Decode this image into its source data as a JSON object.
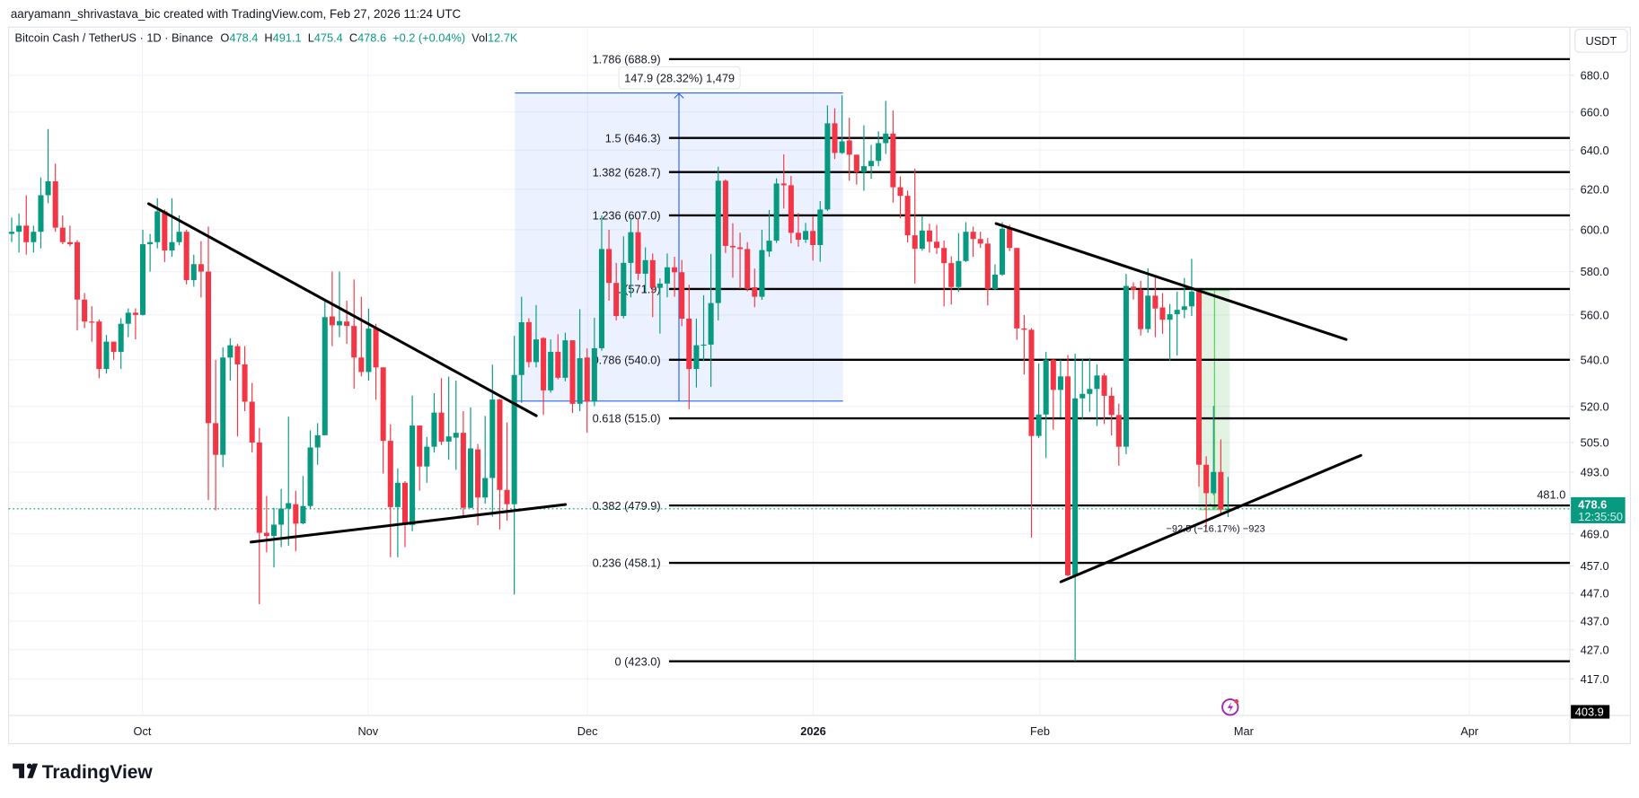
{
  "header": {
    "credit": "aaryamann_shrivastava_bic created with TradingView.com, Feb 27, 2026 11:24 UTC",
    "symbol": "Bitcoin Cash / TetherUS · 1D · Binance",
    "o_label": "O",
    "o_value": "478.4",
    "h_label": "H",
    "h_value": "491.1",
    "l_label": "L",
    "l_value": "475.4",
    "c_label": "C",
    "c_value": "478.6",
    "change": "+0.2 (+0.04%)",
    "vol_label": "Vol",
    "vol_value": "12.7K"
  },
  "price_axis": {
    "currency_button": "USDT",
    "last_price": "478.6",
    "countdown": "12:35:50",
    "low_tag": "403.9"
  },
  "footer": {
    "logo_text": "TradingView"
  },
  "annotations": {
    "range_up_label": "147.9 (28.32%) 1,479",
    "range_down_label": "−92.5 (−16.17%) −923",
    "alert_icon": "lightning-bolt-icon"
  },
  "colors": {
    "up": "#089981",
    "down": "#f23645",
    "fib_line": "#000000",
    "range_up": "#2962ff",
    "range_down": "#4caf50",
    "alert": "#9c27b0"
  },
  "chart_data": {
    "type": "candlestick",
    "title": "Bitcoin Cash / TetherUS · 1D · Binance",
    "x_ticks": [
      "Oct",
      "Nov",
      "Dec",
      "2026",
      "Feb",
      "Mar",
      "Apr"
    ],
    "y_scale": "log",
    "y_ticks": [
      680,
      660,
      640,
      620,
      600,
      580,
      560,
      540,
      520,
      505,
      493,
      481,
      469,
      457,
      447,
      437,
      427,
      417
    ],
    "y_tick_labels": [
      "680.0",
      "660.0",
      "640.0",
      "620.0",
      "600.0",
      "580.0",
      "560.0",
      "540.0",
      "520.0",
      "505.0",
      "493.0",
      "481.0",
      "469.0",
      "457.0",
      "447.0",
      "437.0",
      "427.0",
      "417.0"
    ],
    "grid": true,
    "fib_levels": [
      {
        "label": "1.786 (688.9)",
        "price": 688.9
      },
      {
        "label": "1.5 (646.3)",
        "price": 646.3
      },
      {
        "label": "1.382 (628.7)",
        "price": 628.7
      },
      {
        "label": "1.236 (607.0)",
        "price": 607.0
      },
      {
        "label": "1 (571.9)",
        "price": 571.9
      },
      {
        "label": "0.786 (540.0)",
        "price": 540.0
      },
      {
        "label": "0.618 (515.0)",
        "price": 515.0
      },
      {
        "label": "0.382 (479.9)",
        "price": 479.9
      },
      {
        "label": "0.236 (458.1)",
        "price": 458.1
      },
      {
        "label": "0 (423.0)",
        "price": 423.0
      }
    ],
    "columns": [
      "date",
      "open",
      "high",
      "low",
      "close"
    ],
    "candles": [
      [
        "2025-09-13",
        598,
        606,
        594,
        599
      ],
      [
        "2025-09-14",
        599,
        608,
        589,
        602
      ],
      [
        "2025-09-15",
        602,
        617,
        588,
        594
      ],
      [
        "2025-09-16",
        594,
        602,
        589,
        599
      ],
      [
        "2025-09-17",
        599,
        626,
        591,
        617
      ],
      [
        "2025-09-18",
        617,
        651,
        613,
        624
      ],
      [
        "2025-09-19",
        624,
        633,
        599,
        601
      ],
      [
        "2025-09-20",
        601,
        607,
        593,
        594
      ],
      [
        "2025-09-21",
        594,
        602,
        592,
        593
      ],
      [
        "2025-09-22",
        594,
        595,
        553,
        567
      ],
      [
        "2025-09-23",
        567,
        570,
        554,
        557
      ],
      [
        "2025-09-24",
        557,
        564,
        548,
        556.5
      ],
      [
        "2025-09-25",
        557,
        558,
        532,
        536
      ],
      [
        "2025-09-26",
        536,
        551,
        534,
        548
      ],
      [
        "2025-09-27",
        548,
        548,
        540,
        543.5
      ],
      [
        "2025-09-28",
        543.5,
        558.5,
        536,
        556
      ],
      [
        "2025-09-29",
        556,
        563,
        550,
        561
      ],
      [
        "2025-09-30",
        561,
        563,
        549,
        560
      ],
      [
        "2025-10-01",
        560,
        600,
        559.7,
        593
      ],
      [
        "2025-10-02",
        593,
        598,
        580,
        594
      ],
      [
        "2025-10-03",
        594,
        615.5,
        591,
        609
      ],
      [
        "2025-10-04",
        609,
        610,
        584.5,
        590
      ],
      [
        "2025-10-05",
        590,
        615.5,
        587,
        594
      ],
      [
        "2025-10-06",
        594,
        607,
        592.5,
        599
      ],
      [
        "2025-10-07",
        599,
        600,
        574,
        576
      ],
      [
        "2025-10-08",
        576,
        588,
        573,
        583.5
      ],
      [
        "2025-10-09",
        583.5,
        594.5,
        568,
        580
      ],
      [
        "2025-10-10",
        580,
        601.5,
        482,
        513
      ],
      [
        "2025-10-11",
        513,
        540,
        478,
        500
      ],
      [
        "2025-10-12",
        500,
        545.5,
        495,
        541
      ],
      [
        "2025-10-13",
        541,
        549.5,
        531,
        546.4
      ],
      [
        "2025-10-14",
        546,
        547,
        507.5,
        538
      ],
      [
        "2025-10-15",
        538,
        546,
        518,
        522
      ],
      [
        "2025-10-16",
        522,
        530,
        501,
        505
      ],
      [
        "2025-10-17",
        505,
        511,
        443,
        469.4
      ],
      [
        "2025-10-18",
        469.4,
        483.6,
        462,
        468.2
      ],
      [
        "2025-10-19",
        468.2,
        479,
        456.4,
        472.5
      ],
      [
        "2025-10-20",
        472.5,
        486.4,
        464,
        478.7
      ],
      [
        "2025-10-21",
        478.7,
        515.7,
        464.5,
        480.8
      ],
      [
        "2025-10-22",
        480.4,
        485.6,
        462.4,
        472.9
      ],
      [
        "2025-10-23",
        473,
        491.5,
        472.6,
        479.7
      ],
      [
        "2025-10-24",
        479.7,
        510,
        478.4,
        503
      ],
      [
        "2025-10-25",
        503,
        513,
        496,
        508
      ],
      [
        "2025-10-26",
        508,
        566,
        508,
        559
      ],
      [
        "2025-10-27",
        559.3,
        580,
        546,
        555.3
      ],
      [
        "2025-10-28",
        555.3,
        580,
        550,
        557.2
      ],
      [
        "2025-10-29",
        557,
        566.5,
        547,
        555
      ],
      [
        "2025-10-30",
        555,
        576.3,
        527.5,
        541
      ],
      [
        "2025-10-31",
        541,
        568.3,
        532.8,
        534.7
      ],
      [
        "2025-11-01",
        534.7,
        562.9,
        531,
        553.8
      ],
      [
        "2025-11-02",
        553.8,
        556,
        522.8,
        536.7
      ],
      [
        "2025-11-03",
        536.7,
        536.7,
        492.5,
        505.7
      ],
      [
        "2025-11-04",
        505.7,
        512.5,
        460.2,
        479.3
      ],
      [
        "2025-11-05",
        479.3,
        494.5,
        460.2,
        488.8
      ],
      [
        "2025-11-06",
        488.8,
        489.5,
        464,
        472.4
      ],
      [
        "2025-11-07",
        472.4,
        524.6,
        470,
        512
      ],
      [
        "2025-11-08",
        512,
        512,
        485.7,
        495.3
      ],
      [
        "2025-11-09",
        495.3,
        507.3,
        488.8,
        503.3
      ],
      [
        "2025-11-10",
        503.3,
        525.6,
        500.9,
        517.4
      ],
      [
        "2025-11-11",
        517.4,
        532,
        504,
        505.4
      ],
      [
        "2025-11-12",
        505.4,
        532.7,
        498,
        507.5
      ],
      [
        "2025-11-13",
        507,
        531,
        494,
        509
      ],
      [
        "2025-11-14",
        509,
        518,
        475.3,
        479
      ],
      [
        "2025-11-15",
        479,
        519.6,
        478.9,
        502.6
      ],
      [
        "2025-11-16",
        502.2,
        504.4,
        472.3,
        483
      ],
      [
        "2025-11-17",
        483,
        516,
        480.6,
        490.7
      ],
      [
        "2025-11-18",
        490.7,
        537.9,
        475.6,
        522.9
      ],
      [
        "2025-11-19",
        522.9,
        523.2,
        470.7,
        486
      ],
      [
        "2025-11-20",
        486,
        513.3,
        474,
        480.4
      ],
      [
        "2025-11-21",
        480.4,
        550.6,
        446.5,
        533.4
      ],
      [
        "2025-11-22",
        533.4,
        568.3,
        521.5,
        556.7
      ],
      [
        "2025-11-23",
        556.7,
        558.5,
        536.7,
        539
      ],
      [
        "2025-11-24",
        539,
        564.5,
        536.7,
        549
      ],
      [
        "2025-11-25",
        549.6,
        550,
        516.4,
        526.8
      ],
      [
        "2025-11-26",
        526.8,
        549,
        525.8,
        543.5
      ],
      [
        "2025-11-27",
        543.5,
        551.3,
        531.5,
        532.2
      ],
      [
        "2025-11-28",
        532.2,
        552,
        530.7,
        548.6
      ],
      [
        "2025-11-29",
        548.6,
        548.6,
        517.2,
        521.1
      ],
      [
        "2025-11-30",
        521.1,
        562.6,
        518,
        540.7
      ],
      [
        "2025-12-01",
        541,
        545,
        509,
        522
      ],
      [
        "2025-12-02",
        522,
        558.7,
        520.1,
        545.1
      ],
      [
        "2025-12-03",
        545.1,
        607,
        544,
        590.7
      ],
      [
        "2025-12-04",
        590.7,
        600,
        566.5,
        574.7
      ],
      [
        "2025-12-05",
        574.7,
        584.1,
        557.5,
        559.5
      ],
      [
        "2025-12-06",
        559.5,
        596.8,
        558.4,
        584.1
      ],
      [
        "2025-12-07",
        584.1,
        605.8,
        568,
        598.8
      ],
      [
        "2025-12-08",
        598.8,
        605.3,
        576,
        579
      ],
      [
        "2025-12-09",
        579,
        591.5,
        570.4,
        585.4
      ],
      [
        "2025-12-10",
        585.4,
        588.6,
        559,
        572.4
      ],
      [
        "2025-12-11",
        572.4,
        576.8,
        551.6,
        574.4
      ],
      [
        "2025-12-12",
        574.4,
        588.6,
        568,
        582
      ],
      [
        "2025-12-13",
        582,
        587,
        568.3,
        579.7
      ],
      [
        "2025-12-14",
        579.7,
        585.5,
        554.9,
        558.3
      ],
      [
        "2025-12-15",
        558.3,
        573.9,
        518.8,
        536
      ],
      [
        "2025-12-16",
        536,
        558.3,
        528,
        546.4
      ],
      [
        "2025-12-17",
        546.4,
        569,
        539.4,
        546.7
      ],
      [
        "2025-12-18",
        546.7,
        588.3,
        528.3,
        565.4
      ],
      [
        "2025-12-19",
        565.4,
        631.4,
        557.5,
        624.3
      ],
      [
        "2025-12-20",
        624.3,
        625,
        588.8,
        592.2
      ],
      [
        "2025-12-21",
        592.2,
        603.1,
        577.1,
        591.5
      ],
      [
        "2025-12-22",
        591.5,
        598.6,
        571.9,
        590.7
      ],
      [
        "2025-12-23",
        590.7,
        594,
        570.8,
        571.9
      ],
      [
        "2025-12-24",
        572.7,
        581.4,
        563.5,
        568.3
      ],
      [
        "2025-12-25",
        568.3,
        600,
        566.9,
        590.2
      ],
      [
        "2025-12-26",
        589.5,
        609.7,
        587,
        594.7
      ],
      [
        "2025-12-27",
        594.7,
        625.5,
        593.6,
        622.9
      ],
      [
        "2025-12-28",
        622.9,
        637.8,
        610.4,
        622
      ],
      [
        "2025-12-29",
        622,
        626.7,
        593.4,
        598.5
      ],
      [
        "2025-12-30",
        598.5,
        608.2,
        591.8,
        595.2
      ],
      [
        "2025-12-31",
        595.2,
        603.3,
        593.6,
        599.4
      ],
      [
        "2026-01-01",
        599.4,
        606.5,
        585.2,
        592.6
      ],
      [
        "2026-01-02",
        592.6,
        614.1,
        584.6,
        609.9
      ],
      [
        "2026-01-03",
        609.9,
        663.6,
        609.2,
        654
      ],
      [
        "2026-01-04",
        654,
        662,
        635.3,
        638.5
      ],
      [
        "2026-01-05",
        638.5,
        669,
        638,
        644.5
      ],
      [
        "2026-01-06",
        645,
        657,
        624.3,
        637.6
      ],
      [
        "2026-01-07",
        637.6,
        637.6,
        622.3,
        628.7
      ],
      [
        "2026-01-08",
        628.7,
        653,
        619.2,
        631.7
      ],
      [
        "2026-01-09",
        631.7,
        642.7,
        625.2,
        634.4
      ],
      [
        "2026-01-10",
        634.4,
        649.8,
        631.7,
        643.6
      ],
      [
        "2026-01-11",
        643.6,
        666,
        638,
        648.6
      ],
      [
        "2026-01-12",
        648.6,
        660.8,
        613.3,
        621
      ],
      [
        "2026-01-13",
        621,
        626.5,
        605.6,
        616.7
      ],
      [
        "2026-01-14",
        616.7,
        619.3,
        593.9,
        597.3
      ],
      [
        "2026-01-15",
        597.3,
        630.4,
        574.4,
        590.8
      ],
      [
        "2026-01-16",
        590.8,
        606.8,
        589.9,
        599.6
      ],
      [
        "2026-01-17",
        599.6,
        602.9,
        589,
        594.2
      ],
      [
        "2026-01-18",
        594.2,
        602.4,
        588.3,
        591.2
      ],
      [
        "2026-01-19",
        591.2,
        594.8,
        563.9,
        584
      ],
      [
        "2026-01-20",
        584,
        587.2,
        564.7,
        572.8
      ],
      [
        "2026-01-21",
        572.8,
        598.4,
        570.5,
        585
      ],
      [
        "2026-01-22",
        585,
        603.7,
        584.5,
        599
      ],
      [
        "2026-01-23",
        599,
        601.5,
        587,
        595.5
      ],
      [
        "2026-01-24",
        595.5,
        599,
        591.2,
        593.3
      ],
      [
        "2026-01-25",
        593.3,
        596,
        564.3,
        571.9
      ],
      [
        "2026-01-26",
        571.9,
        583.4,
        571.4,
        578.6
      ],
      [
        "2026-01-27",
        578.6,
        603.7,
        578,
        600.5
      ],
      [
        "2026-01-28",
        600.5,
        602.4,
        589.7,
        591.2
      ],
      [
        "2026-01-29",
        591.2,
        591.2,
        548.8,
        553.9
      ],
      [
        "2026-01-30",
        553.9,
        560,
        533.6,
        553.3
      ],
      [
        "2026-01-31",
        553.3,
        554.1,
        467.6,
        507.7
      ],
      [
        "2026-02-01",
        507.7,
        538.4,
        506.9,
        516.6
      ],
      [
        "2026-02-02",
        516.6,
        543.5,
        498.7,
        540
      ],
      [
        "2026-02-03",
        540,
        540.3,
        510.3,
        527
      ],
      [
        "2026-02-04",
        527,
        540,
        515.3,
        532.8
      ],
      [
        "2026-02-05",
        532.8,
        542.1,
        453.1,
        453.5
      ],
      [
        "2026-02-06",
        453.5,
        542.7,
        423,
        523.4
      ],
      [
        "2026-02-07",
        523.4,
        540.3,
        514.5,
        525.3
      ],
      [
        "2026-02-08",
        525.3,
        540.8,
        517.7,
        527.4
      ],
      [
        "2026-02-09",
        527.4,
        538,
        511.8,
        533.2
      ],
      [
        "2026-02-10",
        533.2,
        534.2,
        512.6,
        524.5
      ],
      [
        "2026-02-11",
        524.5,
        528.1,
        507.9,
        516.4
      ],
      [
        "2026-02-12",
        516.4,
        521.2,
        495.6,
        503.3
      ],
      [
        "2026-02-13",
        503.3,
        578.9,
        500.3,
        573.3
      ],
      [
        "2026-02-14",
        573,
        575,
        567,
        571.5
      ],
      [
        "2026-02-15",
        571.5,
        575.7,
        550.7,
        553.6
      ],
      [
        "2026-02-16",
        553.6,
        581.6,
        551.9,
        568.8
      ],
      [
        "2026-02-17",
        568.8,
        578,
        550,
        562.9
      ],
      [
        "2026-02-18",
        563.4,
        570,
        551.5,
        557.8
      ],
      [
        "2026-02-19",
        557.8,
        565,
        539.5,
        560.3
      ],
      [
        "2026-02-20",
        560.3,
        570.7,
        541.9,
        562.3
      ],
      [
        "2026-02-21",
        562.3,
        577,
        558.5,
        563.9
      ],
      [
        "2026-02-22",
        563.9,
        586,
        559.5,
        570.7
      ],
      [
        "2026-02-23",
        570.7,
        570.7,
        487.3,
        496
      ],
      [
        "2026-02-24",
        496,
        499.4,
        471.1,
        484.7
      ],
      [
        "2026-02-25",
        484.7,
        520.2,
        484,
        493.1
      ],
      [
        "2026-02-26",
        493.1,
        506.3,
        476.8,
        478.4
      ],
      [
        "2026-02-27",
        478.4,
        491.1,
        475.4,
        478.6
      ]
    ]
  }
}
